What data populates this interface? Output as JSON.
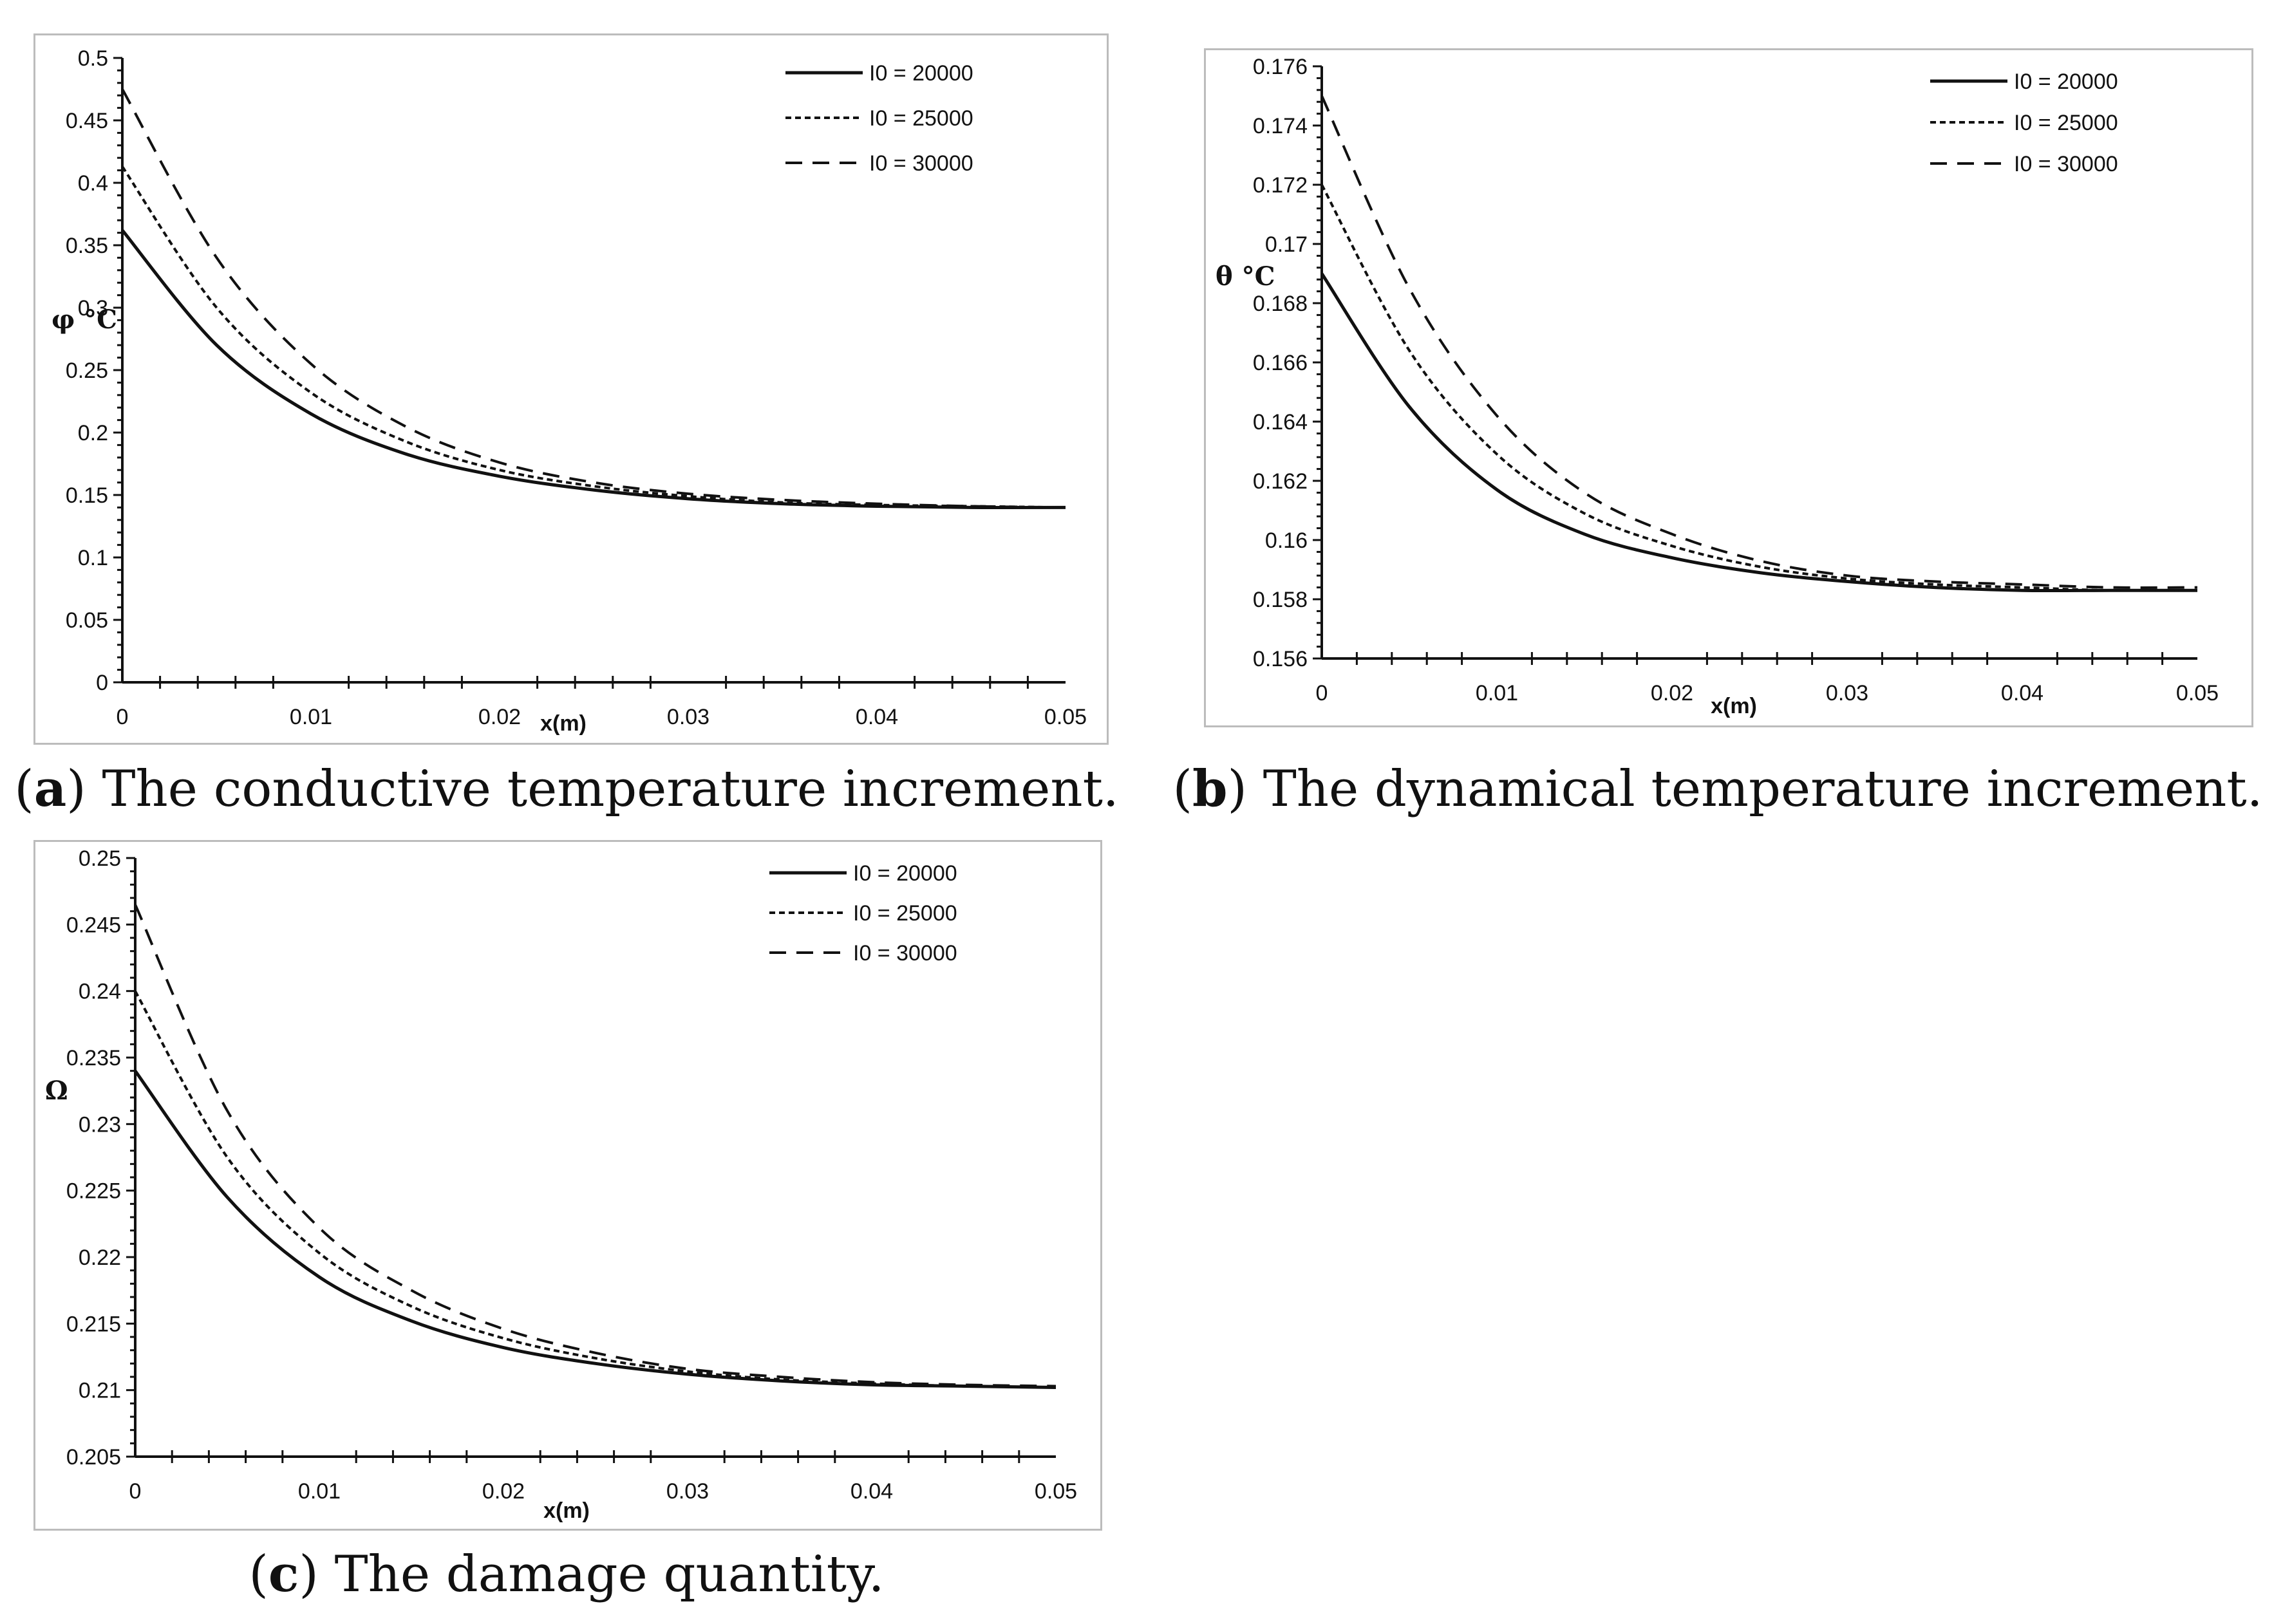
{
  "chart_data": [
    {
      "id": "a",
      "type": "line",
      "caption": {
        "letter": "a",
        "text": "The conductive temperature increment."
      },
      "ylabel": "φ °C",
      "xlabel": "x(m)",
      "xlim": [
        0,
        0.05
      ],
      "ylim": [
        0,
        0.5
      ],
      "xticks": [
        "0",
        "0.01",
        "0.02",
        "0.03",
        "0.04",
        "0.05"
      ],
      "yticks": [
        "0",
        "0.05",
        "0.1",
        "0.15",
        "0.2",
        "0.25",
        "0.3",
        "0.35",
        "0.4",
        "0.45",
        "0.5"
      ],
      "grid": false,
      "legend_position": "top-right",
      "x": [
        0,
        0.005,
        0.01,
        0.015,
        0.02,
        0.025,
        0.03,
        0.035,
        0.04,
        0.045,
        0.05
      ],
      "series": [
        {
          "name": "I0 = 20000",
          "style": "solid",
          "values": [
            0.362,
            0.27,
            0.215,
            0.183,
            0.165,
            0.154,
            0.147,
            0.143,
            0.141,
            0.14,
            0.14
          ]
        },
        {
          "name": "I0 = 25000",
          "style": "dotted",
          "values": [
            0.413,
            0.3,
            0.232,
            0.193,
            0.17,
            0.157,
            0.149,
            0.144,
            0.142,
            0.141,
            0.14
          ]
        },
        {
          "name": "I0 = 30000",
          "style": "dashed",
          "values": [
            0.475,
            0.34,
            0.255,
            0.205,
            0.176,
            0.16,
            0.151,
            0.146,
            0.143,
            0.141,
            0.14
          ]
        }
      ]
    },
    {
      "id": "b",
      "type": "line",
      "caption": {
        "letter": "b",
        "text": "The dynamical temperature increment."
      },
      "ylabel": "θ °C",
      "xlabel": "x(m)",
      "xlim": [
        0,
        0.05
      ],
      "ylim": [
        0.156,
        0.176
      ],
      "xticks": [
        "0",
        "0.01",
        "0.02",
        "0.03",
        "0.04",
        "0.05"
      ],
      "yticks": [
        "0.156",
        "0.158",
        "0.16",
        "0.162",
        "0.164",
        "0.166",
        "0.168",
        "0.17",
        "0.172",
        "0.174",
        "0.176"
      ],
      "grid": false,
      "legend_position": "top-right",
      "x": [
        0,
        0.005,
        0.01,
        0.015,
        0.02,
        0.025,
        0.03,
        0.035,
        0.04,
        0.045,
        0.05
      ],
      "series": [
        {
          "name": "I0 = 20000",
          "style": "solid",
          "values": [
            0.169,
            0.1645,
            0.1617,
            0.1602,
            0.1594,
            0.1589,
            0.1586,
            0.1584,
            0.1583,
            0.1583,
            0.1583
          ]
        },
        {
          "name": "I0 = 25000",
          "style": "dotted",
          "values": [
            0.172,
            0.1664,
            0.1629,
            0.1609,
            0.1598,
            0.1591,
            0.1587,
            0.1585,
            0.1584,
            0.1583,
            0.1583
          ]
        },
        {
          "name": "I0 = 30000",
          "style": "dashed",
          "values": [
            0.175,
            0.1685,
            0.1642,
            0.1616,
            0.1602,
            0.1593,
            0.1588,
            0.1586,
            0.1585,
            0.1584,
            0.1584
          ]
        }
      ]
    },
    {
      "id": "c",
      "type": "line",
      "caption": {
        "letter": "c",
        "text": "The damage quantity."
      },
      "ylabel": "Ω",
      "xlabel": "x(m)",
      "xlim": [
        0,
        0.05
      ],
      "ylim": [
        0.205,
        0.25
      ],
      "xticks": [
        "0",
        "0.01",
        "0.02",
        "0.03",
        "0.04",
        "0.05"
      ],
      "yticks": [
        "0.205",
        "0.21",
        "0.215",
        "0.22",
        "0.225",
        "0.23",
        "0.235",
        "0.24",
        "0.245",
        "0.25"
      ],
      "grid": false,
      "legend_position": "top-right",
      "x": [
        0,
        0.005,
        0.01,
        0.015,
        0.02,
        0.025,
        0.03,
        0.035,
        0.04,
        0.045,
        0.05
      ],
      "series": [
        {
          "name": "I0 = 20000",
          "style": "solid",
          "values": [
            0.234,
            0.2245,
            0.2185,
            0.2152,
            0.2132,
            0.212,
            0.2112,
            0.2107,
            0.2104,
            0.2103,
            0.2102
          ]
        },
        {
          "name": "I0 = 25000",
          "style": "dotted",
          "values": [
            0.24,
            0.2275,
            0.2203,
            0.2163,
            0.2139,
            0.2124,
            0.2114,
            0.2108,
            0.2105,
            0.2103,
            0.2102
          ]
        },
        {
          "name": "I0 = 30000",
          "style": "dashed",
          "values": [
            0.2465,
            0.231,
            0.2222,
            0.2175,
            0.2146,
            0.2128,
            0.2116,
            0.211,
            0.2106,
            0.2104,
            0.2103
          ]
        }
      ]
    }
  ]
}
